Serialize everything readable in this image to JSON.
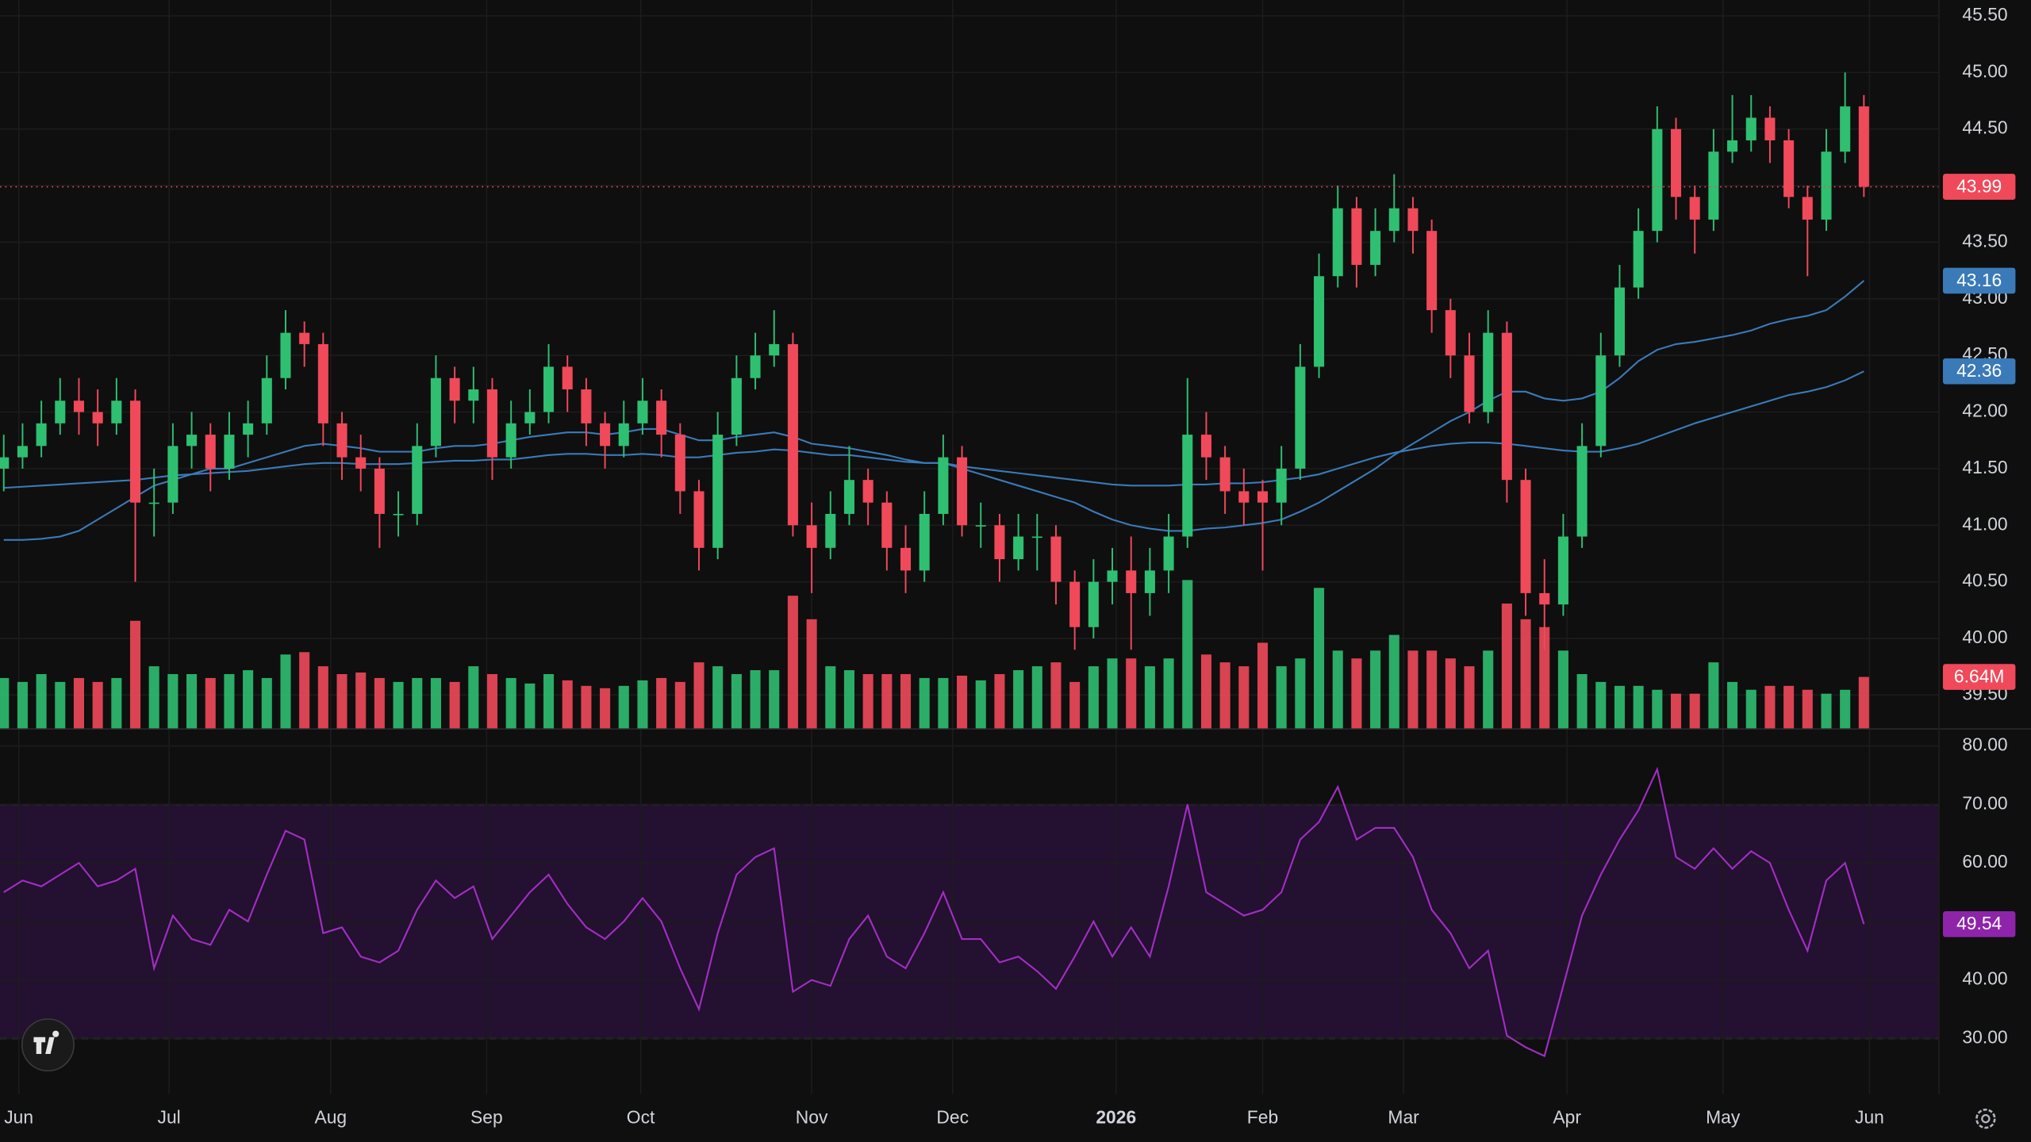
{
  "chart_data": {
    "type": "candlestick",
    "grid": true,
    "xlim": [
      -0.2,
      103
    ],
    "xticks": [
      {
        "value": 0.8,
        "label": "Jun"
      },
      {
        "value": 8.8,
        "label": "Jul"
      },
      {
        "value": 17.4,
        "label": "Aug"
      },
      {
        "value": 25.7,
        "label": "Sep"
      },
      {
        "value": 33.9,
        "label": "Oct"
      },
      {
        "value": 43,
        "label": "Nov"
      },
      {
        "value": 50.5,
        "label": "Dec"
      },
      {
        "value": 59.2,
        "label": "2026"
      },
      {
        "value": 67,
        "label": "Feb"
      },
      {
        "value": 74.5,
        "label": "Mar"
      },
      {
        "value": 83.2,
        "label": "Apr"
      },
      {
        "value": 91.5,
        "label": "May"
      },
      {
        "value": 99.3,
        "label": "Jun"
      }
    ],
    "price": {
      "ylim": [
        39.2,
        45.64
      ],
      "yticks": [
        {
          "value": 39.5,
          "label": "39.50"
        },
        {
          "value": 40,
          "label": "40.00"
        },
        {
          "value": 40.5,
          "label": "40.50"
        },
        {
          "value": 41,
          "label": "41.00"
        },
        {
          "value": 41.5,
          "label": "41.50"
        },
        {
          "value": 42,
          "label": "42.00"
        },
        {
          "value": 42.5,
          "label": "42.50"
        },
        {
          "value": 43,
          "label": "43.00"
        },
        {
          "value": 43.5,
          "label": "43.50"
        },
        {
          "value": 44,
          "label": "44.00"
        },
        {
          "value": 44.5,
          "label": "44.50"
        },
        {
          "value": 45,
          "label": "45.00"
        },
        {
          "value": 45.5,
          "label": "45.50"
        }
      ],
      "up_color": "#2fbf71",
      "down_color": "#f0495a",
      "price_line": true,
      "ohlc": [
        [
          41.5,
          41.8,
          41.3,
          41.6
        ],
        [
          41.6,
          41.9,
          41.5,
          41.7
        ],
        [
          41.7,
          42.1,
          41.6,
          41.9
        ],
        [
          41.9,
          42.3,
          41.8,
          42.1
        ],
        [
          42.1,
          42.3,
          41.8,
          42.0
        ],
        [
          42.0,
          42.2,
          41.7,
          41.9
        ],
        [
          41.9,
          42.3,
          41.8,
          42.1
        ],
        [
          42.1,
          42.2,
          40.5,
          41.2
        ],
        [
          41.2,
          41.5,
          40.9,
          41.2
        ],
        [
          41.2,
          41.9,
          41.1,
          41.7
        ],
        [
          41.7,
          42.0,
          41.5,
          41.8
        ],
        [
          41.8,
          41.9,
          41.3,
          41.5
        ],
        [
          41.5,
          42.0,
          41.4,
          41.8
        ],
        [
          41.8,
          42.1,
          41.6,
          41.9
        ],
        [
          41.9,
          42.5,
          41.8,
          42.3
        ],
        [
          42.3,
          42.9,
          42.2,
          42.7
        ],
        [
          42.7,
          42.8,
          42.4,
          42.6
        ],
        [
          42.6,
          42.7,
          41.7,
          41.9
        ],
        [
          41.9,
          42.0,
          41.4,
          41.6
        ],
        [
          41.6,
          41.8,
          41.3,
          41.5
        ],
        [
          41.5,
          41.6,
          40.8,
          41.1
        ],
        [
          41.1,
          41.3,
          40.9,
          41.1
        ],
        [
          41.1,
          41.9,
          41.0,
          41.7
        ],
        [
          41.7,
          42.5,
          41.6,
          42.3
        ],
        [
          42.3,
          42.4,
          41.9,
          42.1
        ],
        [
          42.1,
          42.4,
          41.9,
          42.2
        ],
        [
          42.2,
          42.3,
          41.4,
          41.6
        ],
        [
          41.6,
          42.1,
          41.5,
          41.9
        ],
        [
          41.9,
          42.2,
          41.8,
          42.0
        ],
        [
          42.0,
          42.6,
          41.9,
          42.4
        ],
        [
          42.4,
          42.5,
          42.0,
          42.2
        ],
        [
          42.2,
          42.3,
          41.7,
          41.9
        ],
        [
          41.9,
          42.0,
          41.5,
          41.7
        ],
        [
          41.7,
          42.1,
          41.6,
          41.9
        ],
        [
          41.9,
          42.3,
          41.8,
          42.1
        ],
        [
          42.1,
          42.2,
          41.6,
          41.8
        ],
        [
          41.8,
          41.9,
          41.1,
          41.3
        ],
        [
          41.3,
          41.4,
          40.6,
          40.8
        ],
        [
          40.8,
          42.0,
          40.7,
          41.8
        ],
        [
          41.8,
          42.5,
          41.7,
          42.3
        ],
        [
          42.3,
          42.7,
          42.2,
          42.5
        ],
        [
          42.5,
          42.9,
          42.4,
          42.6
        ],
        [
          42.6,
          42.7,
          40.9,
          41.0
        ],
        [
          41.0,
          41.2,
          40.4,
          40.8
        ],
        [
          40.8,
          41.3,
          40.7,
          41.1
        ],
        [
          41.1,
          41.7,
          41.0,
          41.4
        ],
        [
          41.4,
          41.5,
          41.0,
          41.2
        ],
        [
          41.2,
          41.3,
          40.6,
          40.8
        ],
        [
          40.8,
          41.0,
          40.4,
          40.6
        ],
        [
          40.6,
          41.3,
          40.5,
          41.1
        ],
        [
          41.1,
          41.8,
          41.0,
          41.6
        ],
        [
          41.6,
          41.7,
          40.9,
          41.0
        ],
        [
          41.0,
          41.2,
          40.8,
          41.0
        ],
        [
          41.0,
          41.1,
          40.5,
          40.7
        ],
        [
          40.7,
          41.1,
          40.6,
          40.9
        ],
        [
          40.9,
          41.1,
          40.6,
          40.9
        ],
        [
          40.9,
          41.0,
          40.3,
          40.5
        ],
        [
          40.5,
          40.6,
          39.9,
          40.1
        ],
        [
          40.1,
          40.7,
          40.0,
          40.5
        ],
        [
          40.5,
          40.8,
          40.3,
          40.6
        ],
        [
          40.6,
          40.9,
          39.9,
          40.4
        ],
        [
          40.4,
          40.8,
          40.2,
          40.6
        ],
        [
          40.6,
          41.1,
          40.4,
          40.9
        ],
        [
          40.9,
          42.3,
          40.8,
          41.8
        ],
        [
          41.8,
          42.0,
          41.4,
          41.6
        ],
        [
          41.6,
          41.7,
          41.1,
          41.3
        ],
        [
          41.3,
          41.5,
          41.0,
          41.2
        ],
        [
          41.3,
          41.4,
          40.6,
          41.2
        ],
        [
          41.2,
          41.7,
          41.0,
          41.5
        ],
        [
          41.5,
          42.6,
          41.4,
          42.4
        ],
        [
          42.4,
          43.4,
          42.3,
          43.2
        ],
        [
          43.2,
          44.0,
          43.1,
          43.8
        ],
        [
          43.8,
          43.9,
          43.1,
          43.3
        ],
        [
          43.3,
          43.8,
          43.2,
          43.6
        ],
        [
          43.6,
          44.1,
          43.5,
          43.8
        ],
        [
          43.8,
          43.9,
          43.4,
          43.6
        ],
        [
          43.6,
          43.7,
          42.7,
          42.9
        ],
        [
          42.9,
          43.0,
          42.3,
          42.5
        ],
        [
          42.5,
          42.7,
          41.9,
          42.0
        ],
        [
          42.0,
          42.9,
          41.9,
          42.7
        ],
        [
          42.7,
          42.8,
          41.2,
          41.4
        ],
        [
          41.4,
          41.5,
          40.2,
          40.4
        ],
        [
          40.4,
          40.7,
          39.9,
          40.3
        ],
        [
          40.3,
          41.1,
          40.2,
          40.9
        ],
        [
          40.9,
          41.9,
          40.8,
          41.7
        ],
        [
          41.7,
          42.7,
          41.6,
          42.5
        ],
        [
          42.5,
          43.3,
          42.4,
          43.1
        ],
        [
          43.1,
          43.8,
          43.0,
          43.6
        ],
        [
          43.6,
          44.7,
          43.5,
          44.5
        ],
        [
          44.5,
          44.6,
          43.7,
          43.9
        ],
        [
          43.9,
          44.0,
          43.4,
          43.7
        ],
        [
          43.7,
          44.5,
          43.6,
          44.3
        ],
        [
          44.3,
          44.8,
          44.2,
          44.4
        ],
        [
          44.4,
          44.8,
          44.3,
          44.6
        ],
        [
          44.6,
          44.7,
          44.2,
          44.4
        ],
        [
          44.4,
          44.5,
          43.8,
          43.9
        ],
        [
          43.9,
          44.0,
          43.2,
          43.7
        ],
        [
          43.7,
          44.5,
          43.6,
          44.3
        ],
        [
          44.3,
          45.0,
          44.2,
          44.7
        ],
        [
          44.7,
          44.8,
          43.9,
          43.99
        ]
      ]
    },
    "moving_averages": {
      "series": [
        {
          "color": "#3a7ab8",
          "values": [
            40.87,
            40.87,
            40.88,
            40.9,
            40.95,
            41.05,
            41.15,
            41.25,
            41.35,
            41.4,
            41.45,
            41.5,
            41.5,
            41.55,
            41.6,
            41.65,
            41.7,
            41.72,
            41.7,
            41.68,
            41.65,
            41.65,
            41.65,
            41.68,
            41.7,
            41.7,
            41.72,
            41.75,
            41.78,
            41.8,
            41.82,
            41.82,
            41.8,
            41.82,
            41.85,
            41.85,
            41.8,
            41.75,
            41.75,
            41.78,
            41.8,
            41.82,
            41.78,
            41.72,
            41.7,
            41.68,
            41.65,
            41.62,
            41.58,
            41.55,
            41.55,
            41.5,
            41.45,
            41.4,
            41.35,
            41.3,
            41.25,
            41.2,
            41.12,
            41.05,
            41.0,
            40.97,
            40.95,
            40.95,
            40.97,
            40.98,
            41.0,
            41.02,
            41.05,
            41.12,
            41.2,
            41.3,
            41.4,
            41.5,
            41.62,
            41.72,
            41.82,
            41.92,
            42.0,
            42.1,
            42.18,
            42.18,
            42.12,
            42.1,
            42.12,
            42.18,
            42.3,
            42.45,
            42.55,
            42.6,
            42.62,
            42.65,
            42.68,
            42.72,
            42.78,
            42.82,
            42.85,
            42.9,
            43.02,
            43.16
          ]
        },
        {
          "color": "#3a7ab8",
          "values": [
            41.33,
            41.34,
            41.35,
            41.36,
            41.37,
            41.38,
            41.39,
            41.4,
            41.42,
            41.44,
            41.45,
            41.46,
            41.47,
            41.48,
            41.5,
            41.52,
            41.54,
            41.55,
            41.55,
            41.54,
            41.54,
            41.54,
            41.55,
            41.56,
            41.57,
            41.57,
            41.58,
            41.58,
            41.6,
            41.62,
            41.63,
            41.63,
            41.62,
            41.62,
            41.63,
            41.62,
            41.6,
            41.6,
            41.62,
            41.64,
            41.65,
            41.67,
            41.66,
            41.64,
            41.62,
            41.62,
            41.6,
            41.58,
            41.56,
            41.55,
            41.55,
            41.52,
            41.5,
            41.48,
            41.46,
            41.44,
            41.42,
            41.4,
            41.38,
            41.36,
            41.35,
            41.35,
            41.35,
            41.36,
            41.36,
            41.37,
            41.37,
            41.38,
            41.4,
            41.42,
            41.45,
            41.5,
            41.55,
            41.6,
            41.64,
            41.67,
            41.7,
            41.72,
            41.73,
            41.73,
            41.72,
            41.7,
            41.68,
            41.66,
            41.65,
            41.65,
            41.68,
            41.72,
            41.78,
            41.84,
            41.9,
            41.95,
            42.0,
            42.05,
            42.1,
            42.15,
            42.18,
            42.22,
            42.28,
            42.36
          ]
        }
      ]
    },
    "volume": {
      "ylim": [
        0,
        93
      ],
      "values": [
        6.5,
        6,
        7,
        6,
        6.5,
        6,
        6.5,
        13.8,
        8,
        7,
        7,
        6.5,
        7,
        7.5,
        6.5,
        9.5,
        9.8,
        8,
        7,
        7.2,
        6.5,
        6,
        6.5,
        6.5,
        6,
        8,
        7,
        6.5,
        5.8,
        7,
        6.2,
        5.5,
        5.2,
        5.5,
        6.2,
        6.5,
        6,
        8.5,
        8,
        7,
        7.5,
        7.5,
        17,
        14,
        8,
        7.5,
        7,
        7,
        7,
        6.5,
        6.5,
        6.8,
        6.2,
        7,
        7.5,
        8,
        8.5,
        6,
        8,
        9,
        9,
        8,
        9,
        19,
        9.5,
        8.5,
        8,
        11,
        8,
        9,
        18,
        10,
        9,
        10,
        12,
        10,
        10,
        9,
        8,
        10,
        16,
        14,
        13,
        10,
        7,
        6,
        5.5,
        5.5,
        5,
        4.5,
        4.5,
        8.5,
        6,
        5,
        5.5,
        5.5,
        5,
        4.5,
        5,
        6.64
      ],
      "value_labels": [
        null,
        null,
        null,
        null,
        null,
        null,
        null,
        null,
        null,
        null,
        null,
        null,
        null,
        null,
        null,
        null,
        null,
        null,
        null,
        null,
        null,
        null,
        null,
        null,
        null,
        null,
        null,
        null,
        null,
        null,
        null,
        null,
        null,
        null,
        null,
        null,
        null,
        null,
        null,
        null,
        null,
        null,
        null,
        null,
        null,
        null,
        null,
        null,
        null,
        null,
        null,
        null,
        null,
        null,
        null,
        null,
        null,
        null,
        null,
        null,
        null,
        null,
        null,
        null,
        null,
        null,
        null,
        null,
        null,
        null,
        null,
        null,
        null,
        null,
        null,
        null,
        null,
        null,
        null,
        null,
        null,
        null,
        null,
        null,
        null,
        null,
        null,
        null,
        null,
        null,
        null,
        null,
        null,
        null,
        null,
        null,
        null,
        null,
        null,
        "6.64M"
      ]
    },
    "rsi": {
      "ylim": [
        20.5,
        82.9
      ],
      "yticks": [
        {
          "value": 30,
          "label": "30.00"
        },
        {
          "value": 40,
          "label": "40.00"
        },
        {
          "value": 50,
          "label": "50.00"
        },
        {
          "value": 60,
          "label": "60.00"
        },
        {
          "value": 70,
          "label": "70.00"
        },
        {
          "value": 80,
          "label": "80.00"
        }
      ],
      "band": [
        30,
        70
      ],
      "color": "#a12ec4",
      "band_color": "#241030",
      "values": [
        55,
        57,
        56,
        58,
        60,
        56,
        57,
        59,
        42,
        51,
        47,
        46,
        52,
        50,
        58,
        65.5,
        64,
        48,
        49,
        44,
        43,
        45,
        52,
        57,
        54,
        56,
        47,
        51,
        55,
        58,
        53,
        49,
        47,
        50,
        54,
        50,
        42,
        35,
        48,
        58,
        61,
        62.5,
        38,
        40,
        39,
        47,
        51,
        44,
        42,
        48,
        55,
        47,
        47,
        43,
        44,
        41.5,
        38.5,
        44,
        50,
        44,
        49,
        44,
        56,
        70,
        55,
        53,
        51,
        52,
        55,
        64,
        67,
        73,
        64,
        66,
        66,
        61,
        52,
        48,
        42,
        45,
        30.5,
        28.5,
        27,
        39,
        51,
        58,
        64,
        69,
        76,
        61,
        59,
        62.5,
        59,
        62,
        60,
        52,
        45,
        57,
        60,
        49.54
      ]
    }
  }
}
